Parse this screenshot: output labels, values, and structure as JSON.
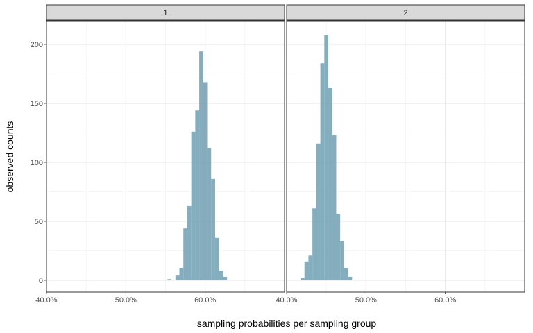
{
  "chart_data": {
    "type": "histogram",
    "facet_variable_values": [
      "1",
      "2"
    ],
    "xlabel": "sampling probabilities per sampling group",
    "ylabel": "observed counts",
    "xlim": [
      0.4,
      0.7
    ],
    "ylim": [
      -10,
      220
    ],
    "x_ticks": [
      0.4,
      0.5,
      0.6
    ],
    "x_tick_labels": [
      "40.0%",
      "50.0%",
      "60.0%"
    ],
    "y_ticks": [
      0,
      50,
      100,
      150,
      200
    ],
    "y_tick_labels": [
      "0",
      "50",
      "100",
      "150",
      "200"
    ],
    "bin_width": 0.005,
    "bar_color": "#6f9fb3",
    "strip_fill": "#d9d9d9",
    "grid": true,
    "panels": [
      {
        "label": "1",
        "bins": [
          {
            "x": 0.555,
            "count": 1
          },
          {
            "x": 0.56,
            "count": 0
          },
          {
            "x": 0.565,
            "count": 4
          },
          {
            "x": 0.57,
            "count": 10
          },
          {
            "x": 0.575,
            "count": 44
          },
          {
            "x": 0.58,
            "count": 63
          },
          {
            "x": 0.585,
            "count": 126
          },
          {
            "x": 0.59,
            "count": 144
          },
          {
            "x": 0.595,
            "count": 194
          },
          {
            "x": 0.6,
            "count": 168
          },
          {
            "x": 0.605,
            "count": 112
          },
          {
            "x": 0.61,
            "count": 86
          },
          {
            "x": 0.615,
            "count": 36
          },
          {
            "x": 0.62,
            "count": 8
          },
          {
            "x": 0.625,
            "count": 3
          }
        ]
      },
      {
        "label": "2",
        "bins": [
          {
            "x": 0.42,
            "count": 2
          },
          {
            "x": 0.425,
            "count": 16
          },
          {
            "x": 0.43,
            "count": 21
          },
          {
            "x": 0.435,
            "count": 61
          },
          {
            "x": 0.44,
            "count": 116
          },
          {
            "x": 0.445,
            "count": 184
          },
          {
            "x": 0.45,
            "count": 208
          },
          {
            "x": 0.455,
            "count": 163
          },
          {
            "x": 0.46,
            "count": 123
          },
          {
            "x": 0.465,
            "count": 56
          },
          {
            "x": 0.47,
            "count": 33
          },
          {
            "x": 0.475,
            "count": 10
          },
          {
            "x": 0.48,
            "count": 3
          }
        ]
      }
    ]
  }
}
